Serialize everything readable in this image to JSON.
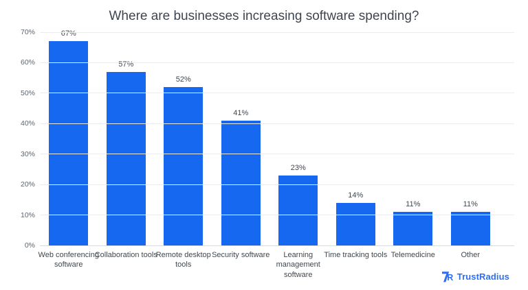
{
  "chart_data": {
    "type": "bar",
    "title": "Where are businesses increasing software spending?",
    "categories": [
      "Web conferencing\nsoftware",
      "Collaboration tools",
      "Remote desktop\ntools",
      "Security software",
      "Learning\nmanagement\nsoftware",
      "Time tracking tools",
      "Telemedicine",
      "Other"
    ],
    "values": [
      67,
      57,
      52,
      41,
      23,
      14,
      11,
      11
    ],
    "value_labels": [
      "67%",
      "57%",
      "52%",
      "41%",
      "23%",
      "14%",
      "11%",
      "11%"
    ],
    "xlabel": "",
    "ylabel": "",
    "ylim": [
      0,
      70
    ],
    "yticks": [
      0,
      10,
      20,
      30,
      40,
      50,
      60,
      70
    ],
    "ytick_labels": [
      "0%",
      "10%",
      "20%",
      "30%",
      "40%",
      "50%",
      "60%",
      "70%"
    ],
    "grid": true,
    "legend_position": "none",
    "bar_color": "#1668f0"
  },
  "branding": {
    "logo_text": "TrustRadius",
    "logo_color": "#2e6ff2"
  },
  "colors": {
    "background": "#ffffff",
    "gridline": "#eaecee",
    "baseline": "#d7dadd",
    "title_text": "#3f4550",
    "axis_text": "#5d646b",
    "value_text": "#3f474e"
  }
}
